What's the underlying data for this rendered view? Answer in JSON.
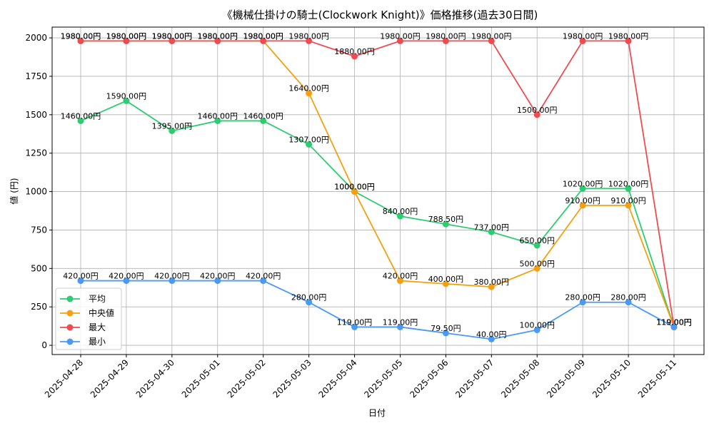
{
  "chart_data": {
    "type": "line",
    "title": "《機械仕掛けの騎士(Clockwork Knight)》価格推移(過去30日間)",
    "xlabel": "日付",
    "ylabel": "値 (円)",
    "ylim": [
      -60,
      2070
    ],
    "yticks": [
      0,
      250,
      500,
      750,
      1000,
      1250,
      1500,
      1750,
      2000
    ],
    "grid": true,
    "legend_position": "lower-left",
    "label_suffix": "円",
    "categories": [
      "2025-04-28",
      "2025-04-29",
      "2025-04-30",
      "2025-05-01",
      "2025-05-02",
      "2025-05-03",
      "2025-05-04",
      "2025-05-05",
      "2025-05-06",
      "2025-05-07",
      "2025-05-08",
      "2025-05-09",
      "2025-05-10",
      "2025-05-11"
    ],
    "series": [
      {
        "name": "平均",
        "color": "#2ecc71",
        "values": [
          1460,
          1590,
          1395,
          1460,
          1460,
          1307,
          1000,
          840,
          788.5,
          737,
          650,
          1020,
          1020,
          119
        ]
      },
      {
        "name": "中央値",
        "color": "#f5a00f",
        "values": [
          1980,
          1980,
          1980,
          1980,
          1980,
          1640,
          1000,
          420,
          400,
          380,
          500,
          910,
          910,
          119
        ]
      },
      {
        "name": "最大",
        "color": "#ef4b50",
        "values": [
          1980,
          1980,
          1980,
          1980,
          1980,
          1980,
          1880,
          1980,
          1980,
          1980,
          1500,
          1980,
          1980,
          119
        ]
      },
      {
        "name": "最小",
        "color": "#4a9af5",
        "values": [
          420,
          420,
          420,
          420,
          420,
          280,
          119,
          119,
          79.5,
          40,
          100,
          280,
          280,
          119
        ]
      }
    ]
  }
}
